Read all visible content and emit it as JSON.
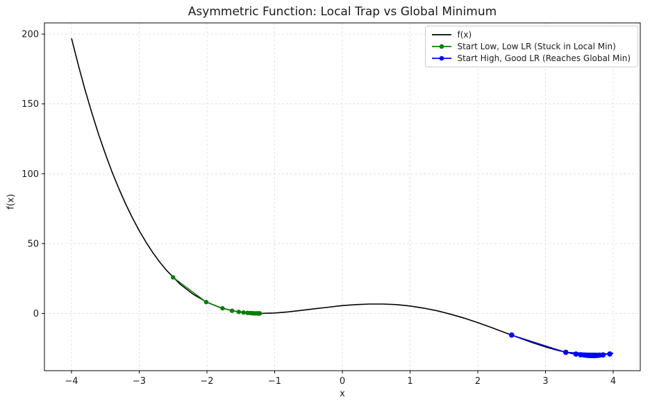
{
  "chart_data": {
    "type": "line",
    "title": "Asymmetric Function: Local Trap vs Global Minimum",
    "xlabel": "x",
    "ylabel": "f(x)",
    "xlim": [
      -4.4,
      4.4
    ],
    "ylim": [
      -41,
      208
    ],
    "x_ticks": [
      -4,
      -3,
      -2,
      -1,
      0,
      1,
      2,
      3,
      4
    ],
    "y_ticks": [
      0,
      50,
      100,
      150,
      200
    ],
    "grid": true,
    "legend_position": "upper right",
    "series": [
      {
        "name": "f(x)",
        "color": "#000000",
        "marker": false,
        "linewidth": 1.6,
        "x": [
          -4.0,
          -3.9,
          -3.8,
          -3.7,
          -3.6,
          -3.5,
          -3.4,
          -3.3,
          -3.2,
          -3.1,
          -3.0,
          -2.9,
          -2.8,
          -2.7,
          -2.6,
          -2.4,
          -2.2,
          -2.0,
          -1.8,
          -1.6,
          -1.4,
          -1.2,
          -1.0,
          -0.8,
          -0.6,
          -0.4,
          -0.2,
          0.0,
          0.2,
          0.4,
          0.6,
          0.8,
          1.0,
          1.2,
          1.4,
          1.6,
          1.8,
          2.0,
          2.2,
          2.4,
          2.6,
          2.8,
          3.0,
          3.2,
          3.4,
          3.6,
          3.7,
          3.8,
          4.0
        ],
        "y": [
          196.97,
          177.8,
          160.0,
          143.5,
          128.2,
          114.1,
          101.1,
          89.2,
          78.3,
          68.3,
          59.2,
          51.0,
          43.6,
          36.9,
          31.0,
          21.1,
          13.6,
          8.0,
          4.1,
          1.7,
          0.4,
          0.0,
          0.3,
          1.1,
          2.2,
          3.4,
          4.5,
          5.6,
          6.3,
          6.7,
          6.7,
          6.3,
          5.3,
          3.8,
          1.9,
          -0.6,
          -3.4,
          -6.6,
          -10.1,
          -13.7,
          -17.3,
          -20.8,
          -24.0,
          -26.7,
          -28.8,
          -29.9,
          -30.1,
          -29.9,
          -28.5
        ]
      },
      {
        "name": "Start Low, Low LR (Stuck in Local Min)",
        "color": "#008000",
        "marker": true,
        "markersize": 3.2,
        "linewidth": 1.5,
        "x": [
          -2.5,
          -2.01,
          -1.77,
          -1.63,
          -1.53,
          -1.46,
          -1.4,
          -1.36,
          -1.33,
          -1.31,
          -1.29,
          -1.27,
          -1.26,
          -1.25,
          -1.24,
          -1.23,
          -1.23,
          -1.22
        ],
        "y": [
          25.8,
          8.1,
          3.7,
          1.9,
          1.1,
          0.63,
          0.39,
          0.24,
          0.16,
          0.1,
          0.07,
          0.05,
          0.03,
          0.02,
          0.02,
          0.01,
          0.01,
          0.01
        ]
      },
      {
        "name": "Start High, Good LR (Reaches Global Min)",
        "color": "#0000ff",
        "marker": true,
        "markersize": 3.8,
        "linewidth": 1.5,
        "x": [
          2.5,
          3.3,
          3.95,
          3.45,
          3.85,
          3.52,
          3.8,
          3.57,
          3.77,
          3.6,
          3.75,
          3.62,
          3.74,
          3.64,
          3.73,
          3.65,
          3.72,
          3.66,
          3.71,
          3.67,
          3.71,
          3.68,
          3.7,
          3.69,
          3.7
        ],
        "y": [
          -15.5,
          -27.9,
          -29.0,
          -29.1,
          -29.7,
          -29.6,
          -29.9,
          -29.8,
          -30.0,
          -29.9,
          -30.0,
          -30.0,
          -30.0,
          -30.0,
          -30.1,
          -30.0,
          -30.1,
          -30.1,
          -30.1,
          -30.1,
          -30.1,
          -30.1,
          -30.1,
          -30.1,
          -30.1
        ]
      }
    ]
  }
}
